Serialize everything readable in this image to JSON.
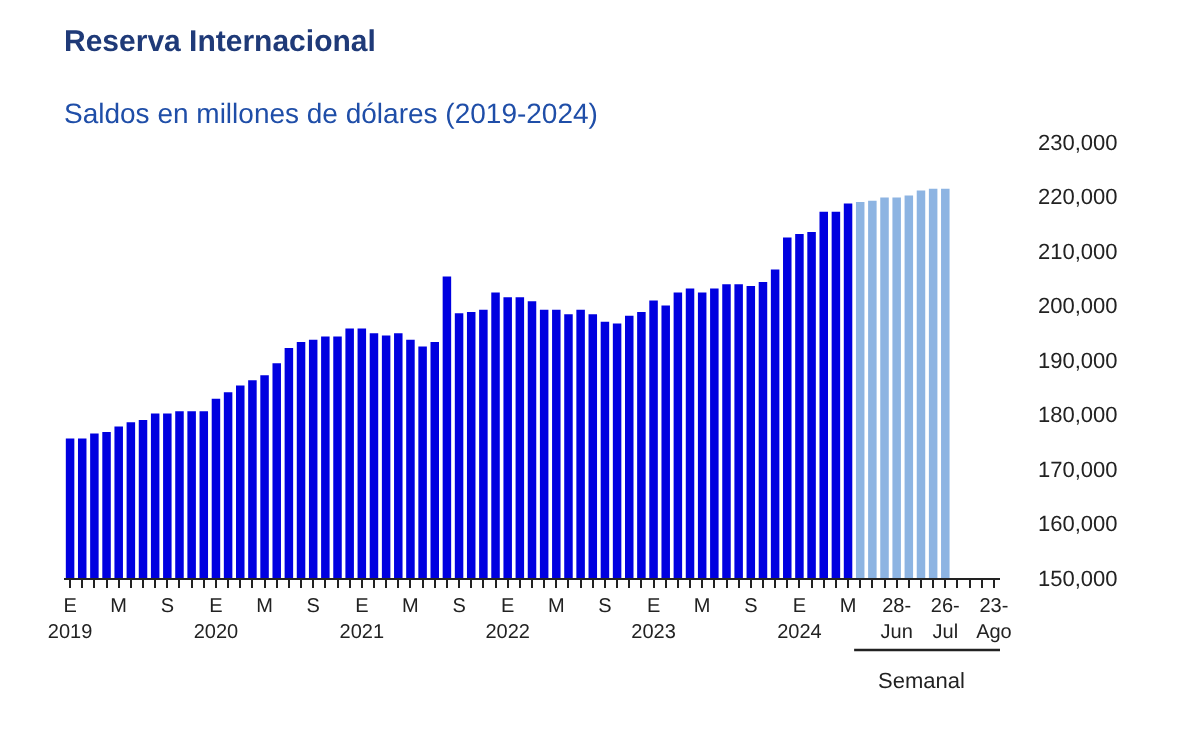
{
  "chart_data": {
    "type": "bar",
    "title": "Reserva Internacional",
    "subtitle": "Saldos en millones de dólares (2019-2024)",
    "categories": [
      "E\n2019",
      null,
      null,
      null,
      "M",
      null,
      null,
      null,
      "S",
      null,
      null,
      null,
      "E\n2020",
      null,
      null,
      null,
      "M",
      null,
      null,
      null,
      "S",
      null,
      null,
      null,
      "E\n2021",
      null,
      null,
      null,
      "M",
      null,
      null,
      null,
      "S",
      null,
      null,
      null,
      "E\n2022",
      null,
      null,
      null,
      "M",
      null,
      null,
      null,
      "S",
      null,
      null,
      null,
      "E\n2023",
      null,
      null,
      null,
      "M",
      null,
      null,
      null,
      "S",
      null,
      null,
      null,
      "E\n2024",
      null,
      null,
      null,
      "M",
      null,
      null,
      null,
      "28-\nJun",
      null,
      null,
      null,
      "26-\nJul",
      null,
      null,
      null,
      "23-\nAgo"
    ],
    "series": [
      {
        "color": "#0000e0",
        "values": [
          175600,
          175600,
          176500,
          176800,
          177800,
          178600,
          179000,
          180200,
          180200,
          180600,
          180600,
          180600,
          182900,
          184100,
          185300,
          186300,
          187200,
          189400,
          192200,
          193300,
          193700,
          194300,
          194300,
          195800,
          195800,
          194900,
          194500,
          194900,
          193700,
          192500,
          193300,
          205300,
          198600,
          198800,
          199200,
          202400,
          201500,
          201500,
          200800,
          199200,
          199200,
          198400,
          199200,
          198400,
          197000,
          196700,
          198100,
          198800,
          200900,
          200000,
          202400,
          203100,
          202400,
          203100,
          203900,
          203900,
          203600,
          204300,
          206600,
          212500,
          213100,
          213500,
          217200,
          217200,
          218700,
          null,
          null,
          null,
          null,
          null,
          null,
          null,
          null,
          null,
          null,
          null,
          null
        ]
      },
      {
        "color": "#8db4e2",
        "values": [
          null,
          null,
          null,
          null,
          null,
          null,
          null,
          null,
          null,
          null,
          null,
          null,
          null,
          null,
          null,
          null,
          null,
          null,
          null,
          null,
          null,
          null,
          null,
          null,
          null,
          null,
          null,
          null,
          null,
          null,
          null,
          null,
          null,
          null,
          null,
          null,
          null,
          null,
          null,
          null,
          null,
          null,
          null,
          null,
          null,
          null,
          null,
          null,
          null,
          null,
          null,
          null,
          null,
          null,
          null,
          null,
          null,
          null,
          null,
          null,
          null,
          null,
          null,
          null,
          null,
          219000,
          219200,
          219800,
          219800,
          220200,
          221100,
          221400,
          221400,
          null,
          null,
          null,
          null
        ]
      }
    ],
    "ylim": [
      150000,
      230000
    ],
    "yticks": [
      {
        "value": 150000,
        "label": "150,000"
      },
      {
        "value": 160000,
        "label": "160,000"
      },
      {
        "value": 170000,
        "label": "170,000"
      },
      {
        "value": 180000,
        "label": "180,000"
      },
      {
        "value": 190000,
        "label": "190,000"
      },
      {
        "value": 200000,
        "label": "200,000"
      },
      {
        "value": 210000,
        "label": "210,000"
      },
      {
        "value": 220000,
        "label": "220,000"
      },
      {
        "value": 230000,
        "label": "230,000"
      }
    ],
    "annotations": [
      "Semanal"
    ]
  }
}
